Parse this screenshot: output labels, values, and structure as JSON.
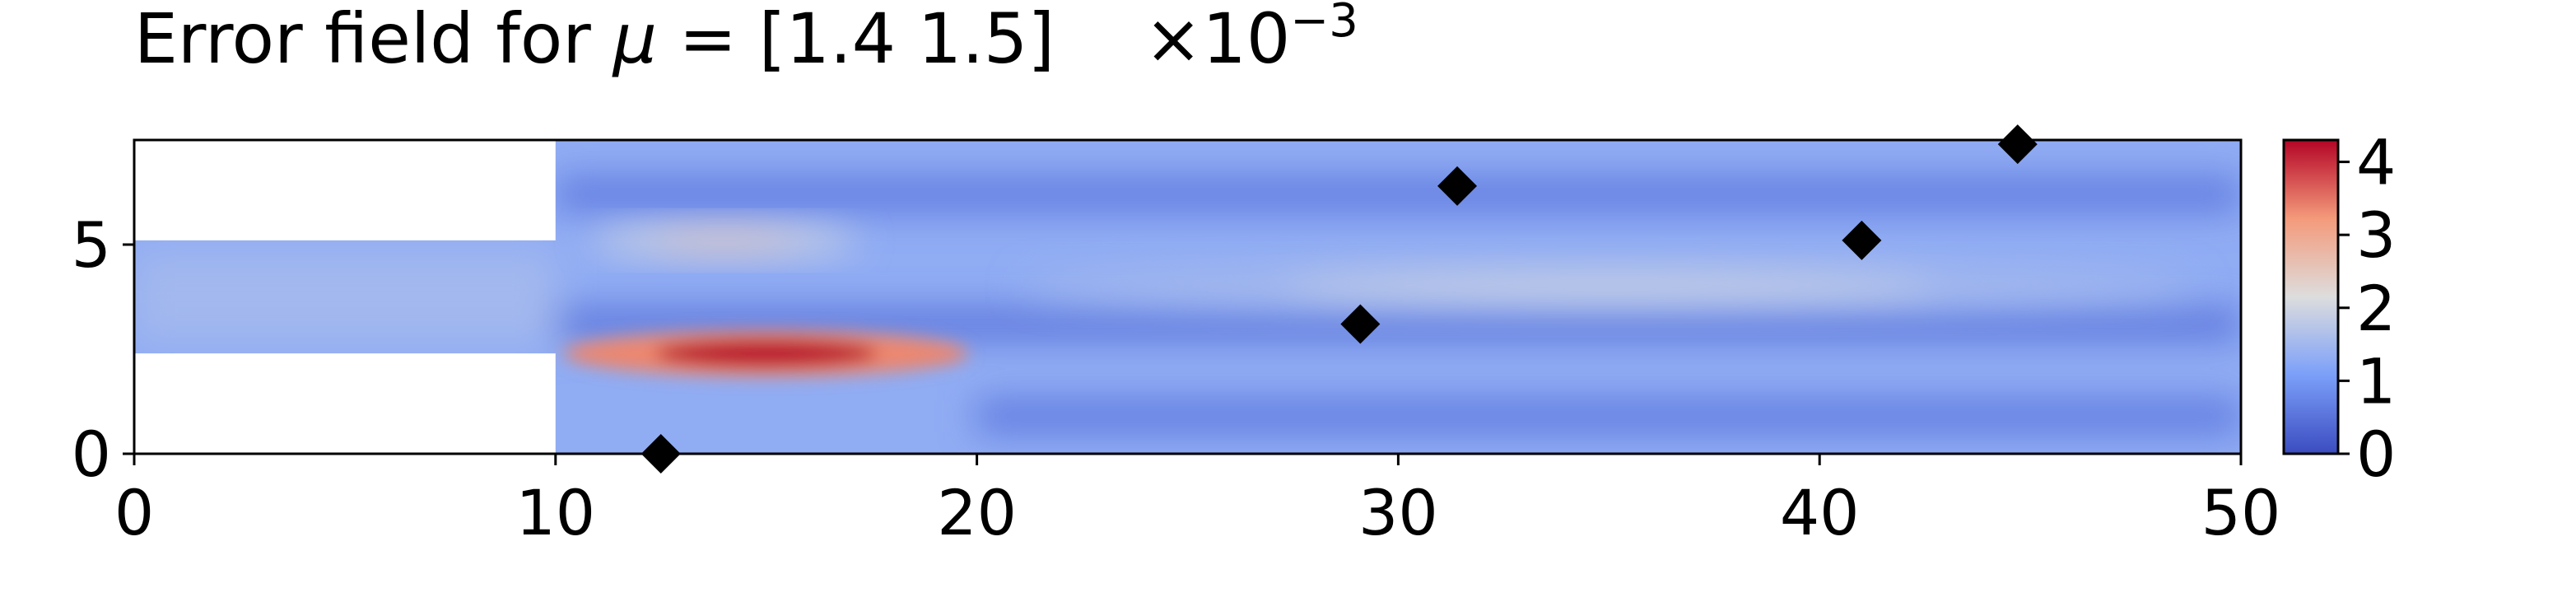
{
  "chart_data": {
    "type": "heatmap",
    "title": "Error field for μ = [1.4 1.5]",
    "title_parts": {
      "prefix": "Error field for ",
      "symbol": "μ",
      "suffix": " = [1.4 1.5]"
    },
    "xlabel": "",
    "ylabel": "",
    "xlim": [
      0,
      50
    ],
    "ylim": [
      0,
      7.5
    ],
    "x_ticks": [
      0,
      10,
      20,
      30,
      40,
      50
    ],
    "x_tick_labels": [
      "0",
      "10",
      "20",
      "30",
      "40",
      "50"
    ],
    "y_ticks": [
      0,
      5
    ],
    "y_tick_labels": [
      "0",
      "5"
    ],
    "domain": {
      "inlet_channel": {
        "x": [
          0,
          10
        ],
        "y": [
          2.4,
          5.1
        ]
      },
      "main_channel": {
        "x": [
          10,
          50
        ],
        "y": [
          0,
          7.5
        ]
      }
    },
    "colorbar": {
      "colormap": "coolwarm",
      "min": 0,
      "max": 4.3,
      "ticks": [
        0,
        1,
        2,
        3,
        4
      ],
      "tick_labels": [
        "0",
        "1",
        "2",
        "3",
        "4"
      ],
      "scale_label": "×10",
      "scale_exponent": "−3"
    },
    "field_features": [
      {
        "x_center": 15,
        "y_center": 2.4,
        "peak_value": 4.2
      },
      {
        "x_center": 14,
        "y_center": 5.1,
        "peak_value": 2.5
      },
      {
        "x_center": 35,
        "y_center": 4.0,
        "peak_value": 1.9
      }
    ],
    "markers": {
      "shape": "diamond",
      "color": "#000000",
      "points": [
        {
          "x": 12.5,
          "y": 0.0
        },
        {
          "x": 29.1,
          "y": 3.1
        },
        {
          "x": 31.4,
          "y": 6.4
        },
        {
          "x": 41.0,
          "y": 5.1
        },
        {
          "x": 44.7,
          "y": 7.4
        }
      ]
    }
  }
}
